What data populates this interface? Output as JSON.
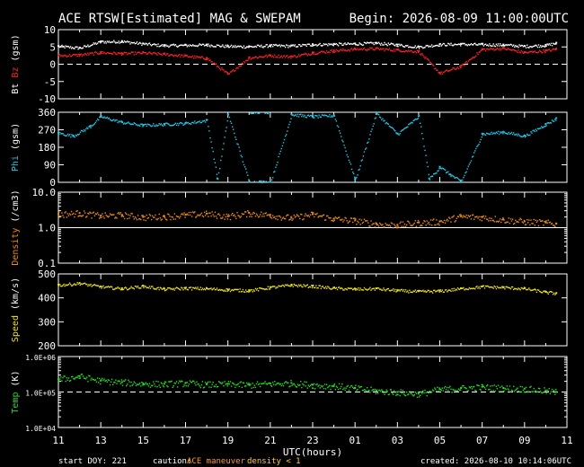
{
  "header": {
    "title": "ACE RTSW[Estimated] MAG & SWEPAM",
    "begin": "Begin: 2026-08-09 11:00:00UTC"
  },
  "footer": {
    "start_doy": "start DOY: 221",
    "caution_label": "caution:",
    "caution_maneuver": "ACE maneuver",
    "caution_density": "density < 1",
    "created": "created: 2026-08-10 10:14:06UTC"
  },
  "x_axis": {
    "label": "UTC(hours)",
    "tick_labels": [
      "11",
      "13",
      "15",
      "17",
      "19",
      "21",
      "23",
      "01",
      "03",
      "05",
      "07",
      "09",
      "11"
    ],
    "tick_positions_hours": [
      0,
      2,
      4,
      6,
      8,
      10,
      12,
      14,
      16,
      18,
      20,
      22,
      24
    ],
    "range_hours": [
      0,
      24
    ]
  },
  "colors": {
    "bt": "#ffffff",
    "bz": "#ff2222",
    "phi": "#22c8e8",
    "density": "#ee8a1a",
    "speed": "#e8e020",
    "temp": "#22dd22",
    "maneuver": "#ff9a1a",
    "density_flag": "#ffd21a"
  },
  "chart_data": [
    {
      "type": "scatter",
      "panel": "bt_bz",
      "ylabel_parts": [
        {
          "text": "Bt",
          "color": "#ffffff"
        },
        {
          "text": "Bz",
          "color": "#ff2222"
        },
        {
          "text": "(gsm)",
          "color": "#ffffff"
        }
      ],
      "ylim": [
        -10,
        10
      ],
      "yticks": [
        10,
        5,
        0,
        -5,
        -10
      ],
      "reference_line": 0,
      "series": [
        {
          "name": "Bt",
          "color": "#ffffff",
          "x": [
            0,
            1,
            2,
            3,
            4,
            5,
            6,
            7,
            8,
            9,
            10,
            11,
            12,
            13,
            14,
            15,
            16,
            17,
            18,
            19,
            20,
            21,
            22,
            23,
            23.5
          ],
          "values": [
            5.3,
            4.8,
            6.6,
            6.7,
            6.0,
            5.5,
            5.6,
            5.7,
            5.3,
            5.2,
            5.5,
            5.4,
            5.8,
            5.9,
            6.0,
            6.2,
            5.7,
            5.1,
            5.8,
            5.9,
            5.8,
            5.7,
            5.3,
            5.6,
            6.2
          ]
        },
        {
          "name": "Bz",
          "color": "#ff2222",
          "x": [
            0,
            1,
            2,
            3,
            4,
            5,
            6,
            7,
            8,
            9,
            10,
            11,
            12,
            13,
            14,
            15,
            16,
            17,
            18,
            19,
            20,
            21,
            22,
            23,
            23.5
          ],
          "values": [
            2.6,
            2.8,
            3.5,
            3.2,
            3.4,
            3.0,
            2.5,
            1.8,
            -2.8,
            2.0,
            2.6,
            2.3,
            3.4,
            4.0,
            4.5,
            4.6,
            4.2,
            3.8,
            -2.5,
            -0.5,
            4.4,
            4.7,
            3.5,
            4.0,
            4.5
          ]
        }
      ]
    },
    {
      "type": "scatter",
      "panel": "phi",
      "ylabel_parts": [
        {
          "text": "Phi",
          "color": "#22c8e8"
        },
        {
          "text": "(gsm)",
          "color": "#ffffff"
        }
      ],
      "ylim": [
        0,
        360
      ],
      "yticks": [
        360,
        270,
        180,
        90,
        0
      ],
      "series": [
        {
          "name": "Phi",
          "color": "#22c8e8",
          "x": [
            0,
            0.7,
            1.5,
            2,
            3,
            4,
            5,
            6,
            7,
            7.5,
            8,
            9,
            9.5,
            10,
            11,
            12,
            13,
            14,
            15,
            16,
            17,
            17.5,
            18,
            18.5,
            19,
            20,
            21,
            22,
            23,
            23.5
          ],
          "values": [
            255,
            240,
            290,
            340,
            310,
            295,
            300,
            305,
            320,
            20,
            350,
            3,
            5,
            2,
            350,
            340,
            345,
            15,
            355,
            250,
            340,
            20,
            80,
            40,
            5,
            250,
            260,
            240,
            300,
            330
          ]
        }
      ]
    },
    {
      "type": "scatter",
      "panel": "density",
      "ylabel_parts": [
        {
          "text": "Density",
          "color": "#ee8a1a"
        },
        {
          "text": "(/cm3)",
          "color": "#ffffff"
        }
      ],
      "yscale": "log",
      "ylim": [
        0.1,
        10
      ],
      "yticks": [
        10,
        1,
        0.1
      ],
      "ytick_labels": [
        "10.0",
        "1.0",
        "0.1"
      ],
      "reference_line": 1,
      "series": [
        {
          "name": "Density",
          "color": "#ee8a1a",
          "x": [
            0,
            1,
            2,
            3,
            4,
            5,
            6,
            7,
            8,
            9,
            10,
            11,
            12,
            13,
            14,
            15,
            16,
            17,
            18,
            19,
            20,
            21,
            22,
            23,
            23.5
          ],
          "values": [
            2.4,
            2.6,
            2.2,
            2.3,
            2.0,
            2.1,
            2.3,
            2.5,
            2.1,
            2.6,
            2.3,
            1.9,
            2.4,
            1.8,
            1.6,
            1.3,
            1.2,
            1.4,
            1.5,
            2.1,
            2.0,
            1.7,
            1.5,
            1.4,
            1.3
          ]
        }
      ]
    },
    {
      "type": "scatter",
      "panel": "speed",
      "ylabel_parts": [
        {
          "text": "Speed",
          "color": "#e8e020"
        },
        {
          "text": "(km/s)",
          "color": "#ffffff"
        }
      ],
      "ylim": [
        200,
        500
      ],
      "yticks": [
        500,
        400,
        300,
        200
      ],
      "series": [
        {
          "name": "Speed",
          "color": "#e8e020",
          "x": [
            0,
            1,
            2,
            3,
            4,
            5,
            6,
            7,
            8,
            9,
            10,
            11,
            12,
            13,
            14,
            15,
            16,
            17,
            18,
            19,
            20,
            21,
            22,
            23,
            23.5
          ],
          "values": [
            455,
            462,
            448,
            440,
            450,
            438,
            442,
            440,
            435,
            432,
            445,
            455,
            450,
            442,
            438,
            440,
            432,
            428,
            430,
            440,
            448,
            445,
            440,
            425,
            420
          ]
        }
      ]
    },
    {
      "type": "scatter",
      "panel": "temp",
      "ylabel_parts": [
        {
          "text": "Temp",
          "color": "#22dd22"
        },
        {
          "text": "(K)",
          "color": "#ffffff"
        }
      ],
      "yscale": "log",
      "ylim": [
        10000,
        1000000
      ],
      "yticks": [
        1000000,
        100000,
        10000
      ],
      "ytick_labels": [
        "1.0E+06",
        "1.0E+05",
        "1.0E+04"
      ],
      "reference_line": 100000,
      "series": [
        {
          "name": "Temp",
          "color": "#22dd22",
          "x": [
            0,
            1,
            2,
            3,
            4,
            5,
            6,
            7,
            8,
            9,
            10,
            11,
            12,
            13,
            14,
            15,
            16,
            17,
            18,
            19,
            20,
            21,
            22,
            23,
            23.5
          ],
          "values": [
            230000,
            280000,
            210000,
            190000,
            175000,
            170000,
            180000,
            165000,
            170000,
            160000,
            175000,
            180000,
            160000,
            150000,
            130000,
            110000,
            100000,
            90000,
            120000,
            130000,
            140000,
            130000,
            125000,
            110000,
            100000
          ]
        }
      ]
    }
  ]
}
